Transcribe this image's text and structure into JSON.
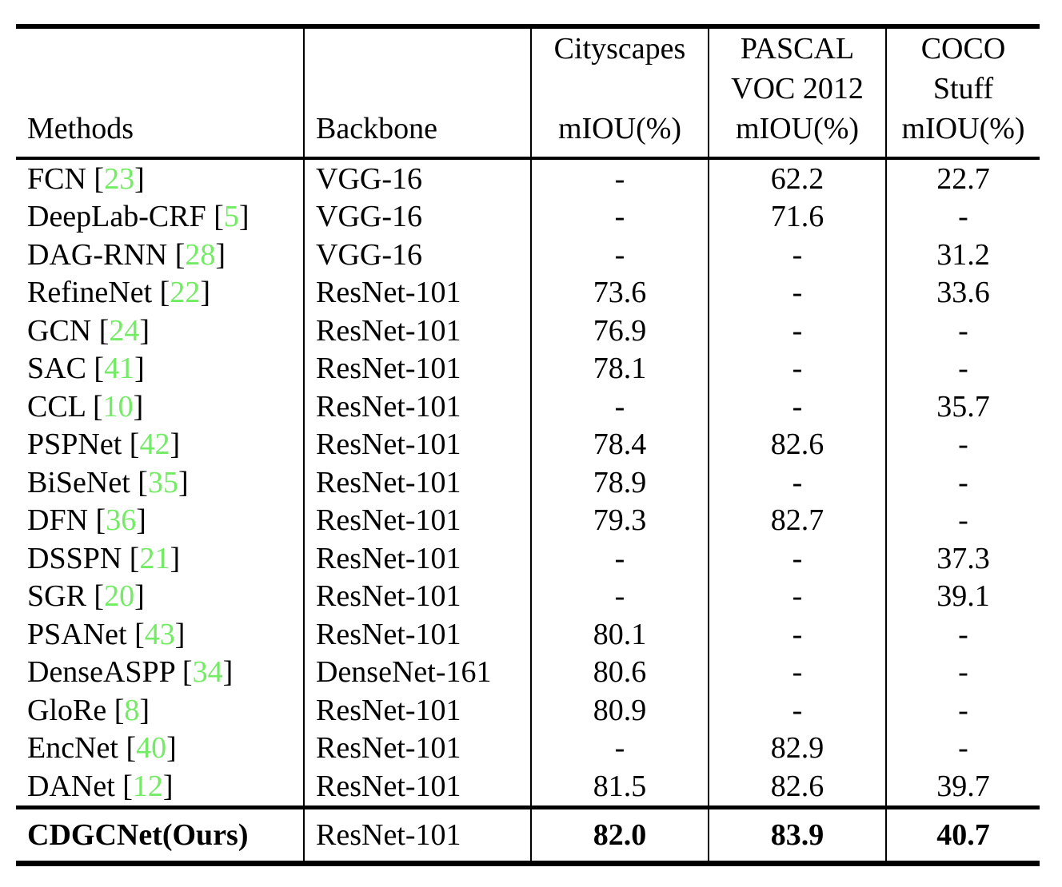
{
  "colors": {
    "citation_green": "#73EB64",
    "text": "#000000",
    "rule": "#000000"
  },
  "table": {
    "header": {
      "methods": "Methods",
      "backbone": "Backbone",
      "cityscapes": {
        "l1": "Cityscapes",
        "l2": "",
        "l3": "mIOU(%)"
      },
      "pascal": {
        "l1": "PASCAL",
        "l2": "VOC 2012",
        "l3": "mIOU(%)"
      },
      "coco": {
        "l1": "COCO",
        "l2": "Stuff",
        "l3": "mIOU(%)"
      }
    },
    "rows": [
      {
        "name": "FCN",
        "ref": "23",
        "backbone": "VGG-16",
        "cityscapes": "-",
        "voc": "62.2",
        "coco": "22.7"
      },
      {
        "name": "DeepLab-CRF",
        "ref": "5",
        "backbone": "VGG-16",
        "cityscapes": "-",
        "voc": "71.6",
        "coco": "-"
      },
      {
        "name": "DAG-RNN",
        "ref": "28",
        "backbone": "VGG-16",
        "cityscapes": "-",
        "voc": "-",
        "coco": "31.2"
      },
      {
        "name": "RefineNet",
        "ref": "22",
        "backbone": "ResNet-101",
        "cityscapes": "73.6",
        "voc": "-",
        "coco": "33.6"
      },
      {
        "name": "GCN",
        "ref": "24",
        "backbone": "ResNet-101",
        "cityscapes": "76.9",
        "voc": "-",
        "coco": "-"
      },
      {
        "name": "SAC",
        "ref": "41",
        "backbone": "ResNet-101",
        "cityscapes": "78.1",
        "voc": "-",
        "coco": "-"
      },
      {
        "name": "CCL",
        "ref": "10",
        "backbone": "ResNet-101",
        "cityscapes": "-",
        "voc": "-",
        "coco": "35.7"
      },
      {
        "name": "PSPNet",
        "ref": "42",
        "backbone": "ResNet-101",
        "cityscapes": "78.4",
        "voc": "82.6",
        "coco": "-"
      },
      {
        "name": "BiSeNet",
        "ref": "35",
        "backbone": "ResNet-101",
        "cityscapes": "78.9",
        "voc": "-",
        "coco": "-"
      },
      {
        "name": "DFN",
        "ref": "36",
        "backbone": "ResNet-101",
        "cityscapes": "79.3",
        "voc": "82.7",
        "coco": "-"
      },
      {
        "name": "DSSPN",
        "ref": "21",
        "backbone": "ResNet-101",
        "cityscapes": "-",
        "voc": "-",
        "coco": "37.3"
      },
      {
        "name": "SGR",
        "ref": "20",
        "backbone": "ResNet-101",
        "cityscapes": "-",
        "voc": "-",
        "coco": "39.1"
      },
      {
        "name": "PSANet",
        "ref": "43",
        "backbone": "ResNet-101",
        "cityscapes": "80.1",
        "voc": "-",
        "coco": "-"
      },
      {
        "name": "DenseASPP",
        "ref": "34",
        "backbone": "DenseNet-161",
        "cityscapes": "80.6",
        "voc": "-",
        "coco": "-"
      },
      {
        "name": "GloRe",
        "ref": "8",
        "backbone": "ResNet-101",
        "cityscapes": "80.9",
        "voc": "-",
        "coco": "-"
      },
      {
        "name": "EncNet",
        "ref": "40",
        "backbone": "ResNet-101",
        "cityscapes": "-",
        "voc": "82.9",
        "coco": "-"
      },
      {
        "name": "DANet",
        "ref": "12",
        "backbone": "ResNet-101",
        "cityscapes": "81.5",
        "voc": "82.6",
        "coco": "39.7"
      }
    ],
    "final_row": {
      "name": "CDGCNet(Ours)",
      "backbone": "ResNet-101",
      "cityscapes": "82.0",
      "voc": "83.9",
      "coco": "40.7"
    }
  }
}
